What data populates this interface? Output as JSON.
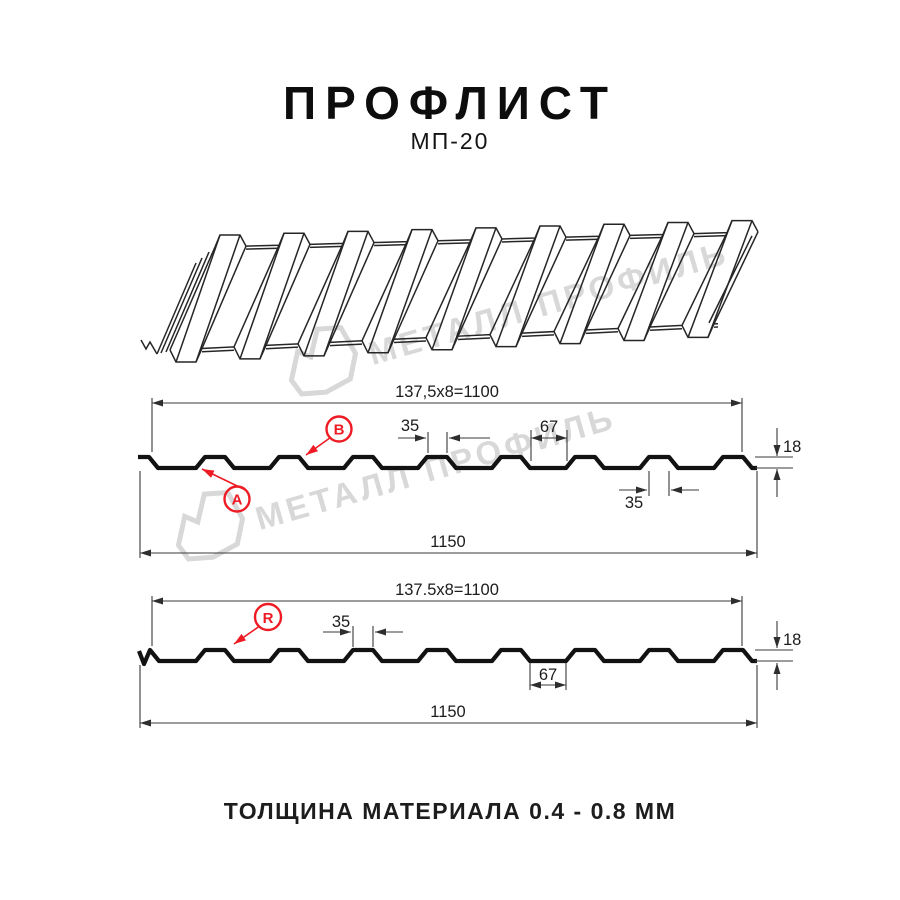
{
  "header": {
    "title": "ПРОФЛИСТ",
    "subtitle": "МП-20"
  },
  "watermark": {
    "text": "МЕТАЛЛ ПРОФИЛЬ",
    "color": "#d8d8d8"
  },
  "colors": {
    "drawing_line": "#262626",
    "profile_line": "#121212",
    "dimension_line": "#3a3a3a",
    "accent_red": "#ed1c24",
    "watermark_gray": "#d8d8d8"
  },
  "section_top": {
    "dim_width_top": "137,5x8=1100",
    "dim_rib_width": "35",
    "dim_valley_width": "67",
    "dim_rib_width_bottom": "35",
    "dim_total_width": "1150",
    "dim_height": "18",
    "label_a": "A",
    "label_b": "B"
  },
  "section_bottom": {
    "dim_width_top": "137.5x8=1100",
    "dim_rib_width": "35",
    "dim_valley_width": "67",
    "dim_total_width": "1150",
    "dim_height": "18",
    "label_r": "R"
  },
  "footer": {
    "thickness_note": "ТОЛЩИНА МАТЕРИАЛА 0.4 - 0.8 ММ"
  }
}
